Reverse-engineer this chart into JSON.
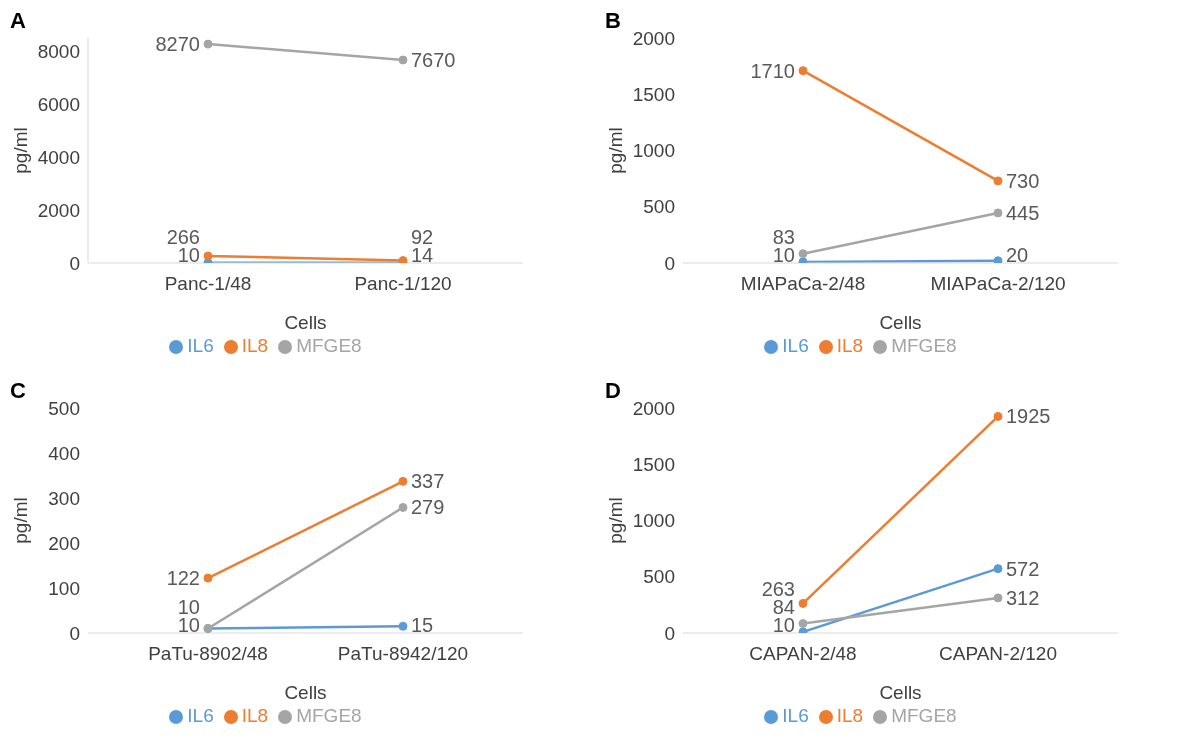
{
  "chart_data": [
    {
      "type": "line",
      "title": "A",
      "categories": [
        "Panc-1/48",
        "Panc-1/120"
      ],
      "xlabel": "Cells",
      "ylabel": "pg/ml",
      "ylim": [
        0,
        8500
      ],
      "yticks": [
        0,
        2000,
        4000,
        6000,
        8000
      ],
      "legend": "bottom",
      "data_labels": true,
      "marker": "circle",
      "series": [
        {
          "name": "IL6",
          "color": "#5b9bd5",
          "values": [
            10,
            14
          ]
        },
        {
          "name": "IL8",
          "color": "#ed7d31",
          "values": [
            266,
            92
          ]
        },
        {
          "name": "MFGE8",
          "color": "#a5a5a5",
          "values": [
            8270,
            7670
          ]
        }
      ]
    },
    {
      "type": "line",
      "title": "B",
      "categories": [
        "MIAPaCa-2/48",
        "MIAPaCa-2/120"
      ],
      "xlabel": "Cells",
      "ylabel": "pg/ml",
      "ylim": [
        0,
        2000
      ],
      "yticks": [
        0,
        500,
        1000,
        1500,
        2000
      ],
      "legend": "bottom",
      "data_labels": true,
      "marker": "circle",
      "series": [
        {
          "name": "IL6",
          "color": "#5b9bd5",
          "values": [
            10,
            20
          ]
        },
        {
          "name": "IL8",
          "color": "#ed7d31",
          "values": [
            1710,
            730
          ]
        },
        {
          "name": "MFGE8",
          "color": "#a5a5a5",
          "values": [
            83,
            445
          ]
        }
      ]
    },
    {
      "type": "line",
      "title": "C",
      "categories": [
        "PaTu-8902/48",
        "PaTu-8942/120"
      ],
      "xlabel": "Cells",
      "ylabel": "pg/ml",
      "ylim": [
        0,
        500
      ],
      "yticks": [
        0,
        100,
        200,
        300,
        400,
        500
      ],
      "legend": "bottom",
      "data_labels": true,
      "marker": "circle",
      "series": [
        {
          "name": "IL6",
          "color": "#5b9bd5",
          "values": [
            10,
            15
          ]
        },
        {
          "name": "IL8",
          "color": "#ed7d31",
          "values": [
            122,
            337
          ]
        },
        {
          "name": "MFGE8",
          "color": "#a5a5a5",
          "values": [
            10,
            279
          ]
        }
      ]
    },
    {
      "type": "line",
      "title": "D",
      "categories": [
        "CAPAN-2/48",
        "CAPAN-2/120"
      ],
      "xlabel": "Cells",
      "ylabel": "pg/ml",
      "ylim": [
        0,
        2000
      ],
      "yticks": [
        0,
        500,
        1000,
        1500,
        2000
      ],
      "legend": "bottom",
      "data_labels": true,
      "marker": "circle",
      "series": [
        {
          "name": "IL6",
          "color": "#5b9bd5",
          "values": [
            10,
            572
          ]
        },
        {
          "name": "IL8",
          "color": "#ed7d31",
          "values": [
            263,
            1925
          ]
        },
        {
          "name": "MFGE8",
          "color": "#a5a5a5",
          "values": [
            84,
            312
          ]
        }
      ]
    }
  ]
}
